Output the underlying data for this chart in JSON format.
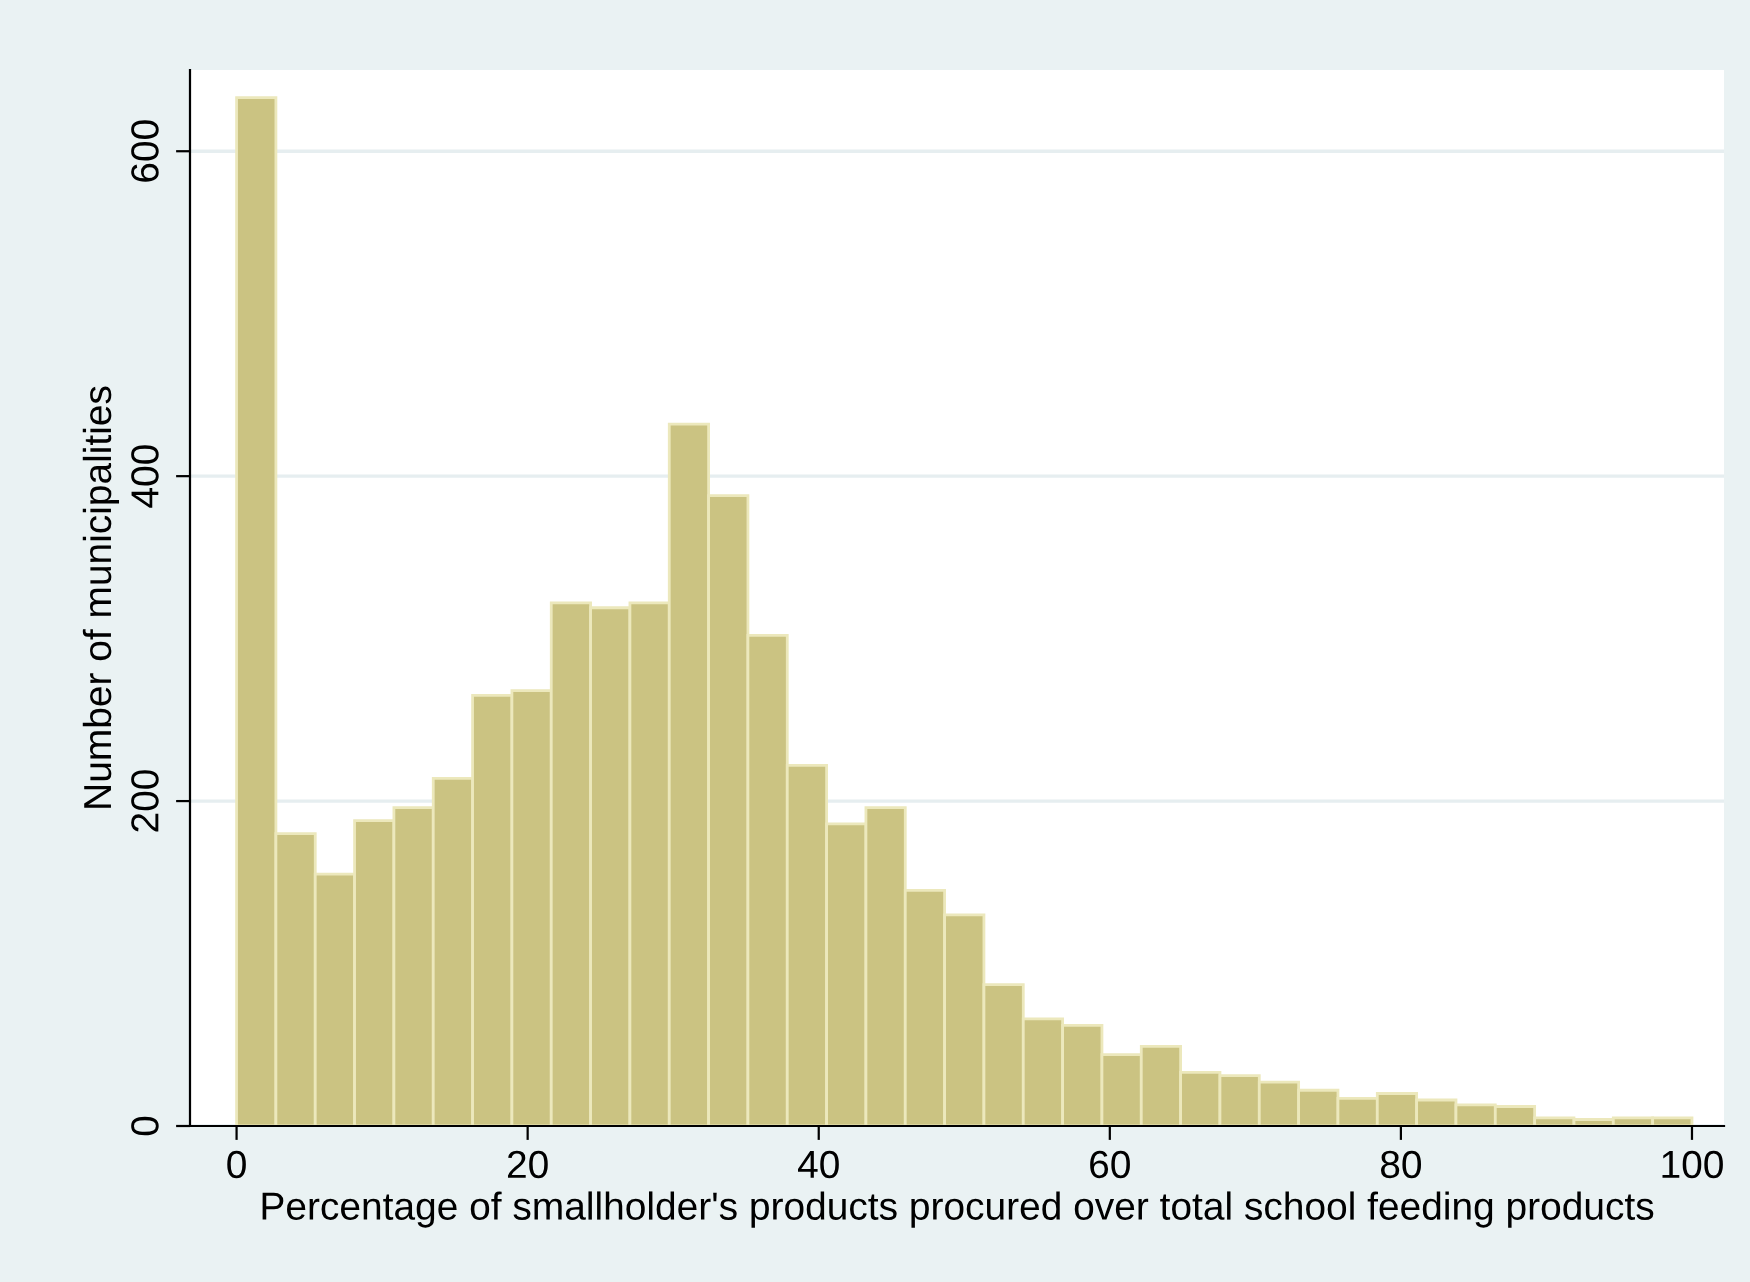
{
  "chart_data": {
    "type": "histogram",
    "xlabel": "Percentage of smallholder's products procured over total school feeding products",
    "ylabel": "Number of municipalities",
    "bins": [
      0,
      2.7027,
      5.4054,
      8.1081,
      10.8108,
      13.5135,
      16.2162,
      18.9189,
      21.6216,
      24.3243,
      27.027,
      29.7297,
      32.4324,
      35.1351,
      37.8378,
      40.5405,
      43.2432,
      45.9459,
      48.6486,
      51.3514,
      54.0541,
      56.7568,
      59.4595,
      62.1622,
      64.8649,
      67.5676,
      70.2703,
      72.973,
      75.6757,
      78.3784,
      81.0811,
      83.7838,
      86.4865,
      89.1892,
      91.8919,
      94.5946,
      97.2973,
      100
    ],
    "values": [
      633,
      180,
      155,
      188,
      196,
      214,
      265,
      268,
      322,
      319,
      322,
      432,
      388,
      302,
      222,
      186,
      196,
      145,
      130,
      87,
      66,
      62,
      44,
      49,
      33,
      31,
      27,
      22,
      17,
      20,
      16,
      13,
      12,
      5,
      4,
      5,
      5
    ],
    "color": "#cbc382",
    "xlim": [
      -3.2,
      102.2
    ],
    "xticks": [
      0,
      20,
      40,
      60,
      80,
      100
    ],
    "ylim": [
      0,
      650
    ],
    "yticks": [
      0,
      200,
      400,
      600
    ],
    "grid": "y"
  }
}
